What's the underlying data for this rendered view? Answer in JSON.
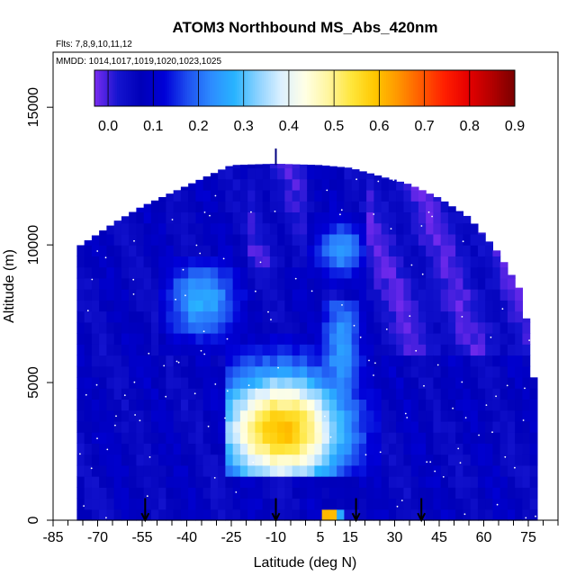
{
  "chart_data": {
    "type": "heatmap",
    "title": "ATOM3 Northbound MS_Abs_420nm",
    "annotations": [
      "Flts: 7,8,9,10,11,12",
      "MMDD: 1014,1017,1019,1020,1023,1025"
    ],
    "xlabel": "Latitude (deg N)",
    "ylabel": "Altitude (m)",
    "xlim": [
      -85,
      85
    ],
    "ylim": [
      0,
      17000
    ],
    "x_ticks": [
      -85,
      -70,
      -55,
      -40,
      -25,
      -10,
      5,
      15,
      30,
      45,
      60,
      75
    ],
    "x_tick_labels": [
      "-85",
      "-70",
      "-55",
      "-40",
      "-25",
      "-10",
      "5",
      "15",
      "30",
      "45",
      "60",
      "75"
    ],
    "y_ticks": [
      0,
      5000,
      10000,
      15000
    ],
    "y_tick_labels": [
      "0",
      "5000",
      "10000",
      "15000"
    ],
    "colorbar": {
      "min": -0.03,
      "max": 0.9,
      "tick_values": [
        0.0,
        0.1,
        0.2,
        0.3,
        0.4,
        0.5,
        0.6,
        0.7,
        0.8,
        0.9
      ],
      "tick_labels": [
        "0.0",
        "0.1",
        "0.2",
        "0.3",
        "0.4",
        "0.5",
        "0.6",
        "0.7",
        "0.8",
        "0.9"
      ],
      "colors": [
        "#7a2cf0",
        "#1414cf",
        "#0000b8",
        "#0000d8",
        "#1e50f0",
        "#2d8cff",
        "#28b4ff",
        "#8cd2ff",
        "#dcf0ff",
        "#ffffe6",
        "#fff5a0",
        "#ffe63c",
        "#ffc800",
        "#ff9600",
        "#ff5a00",
        "#ff1e00",
        "#e60000",
        "#b40000",
        "#7a0000"
      ]
    },
    "profile_locations": [
      -54,
      -10,
      17,
      39
    ],
    "grid_step": {
      "lat": 2.5,
      "alt": 400
    },
    "envelope": [
      {
        "lat": -77,
        "top": 9900
      },
      {
        "lat": -70,
        "top": 10400
      },
      {
        "lat": -63,
        "top": 10900
      },
      {
        "lat": -55,
        "top": 11400
      },
      {
        "lat": -45,
        "top": 11900
      },
      {
        "lat": -35,
        "top": 12400
      },
      {
        "lat": -25,
        "top": 12900
      },
      {
        "lat": -10,
        "top": 12950
      },
      {
        "lat": 5,
        "top": 12900
      },
      {
        "lat": 15,
        "top": 12800
      },
      {
        "lat": 25,
        "top": 12500
      },
      {
        "lat": 35,
        "top": 12200
      },
      {
        "lat": 45,
        "top": 11700
      },
      {
        "lat": 55,
        "top": 11000
      },
      {
        "lat": 65,
        "top": 9700
      },
      {
        "lat": 72,
        "top": 8400
      },
      {
        "lat": 76,
        "top": 6500
      },
      {
        "lat": 78,
        "top": 3000
      }
    ],
    "features": [
      {
        "name": "plume-core",
        "lat": [
          -28,
          25
        ],
        "alt": [
          1600,
          6800
        ],
        "peak_lat": -8,
        "peak_alt": 3300,
        "peak_value": 0.6
      },
      {
        "name": "upper-tongue",
        "lat": [
          -50,
          -20
        ],
        "alt": [
          6000,
          9500
        ],
        "peak_lat": -35,
        "peak_alt": 8000,
        "peak_value": 0.27
      },
      {
        "name": "equatorial-streak",
        "lat": [
          5,
          22
        ],
        "alt": [
          500,
          8000
        ],
        "peak_lat": 12,
        "peak_alt": 6000,
        "peak_value": 0.25
      },
      {
        "name": "boundary-layer-hotspot",
        "lat": [
          5,
          14
        ],
        "alt": [
          0,
          500
        ],
        "peak_lat": 8,
        "peak_alt": 100,
        "peak_value": 0.85
      },
      {
        "name": "upper-tropical-band",
        "lat": [
          0,
          20
        ],
        "alt": [
          8500,
          11000
        ],
        "peak_lat": 12,
        "peak_alt": 9800,
        "peak_value": 0.25
      }
    ],
    "grid": false,
    "legend_position": "top"
  }
}
